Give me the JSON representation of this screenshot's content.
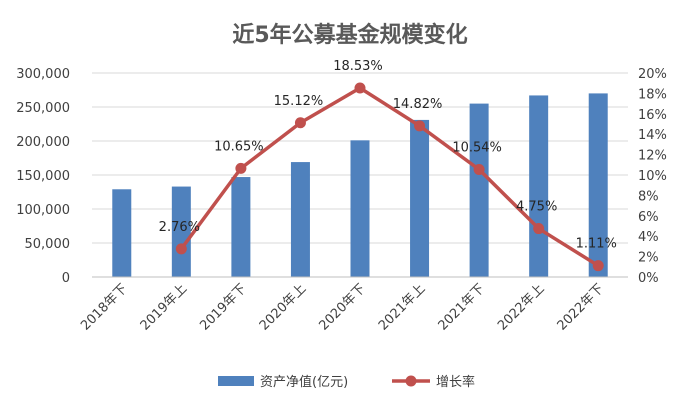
{
  "chart_data": {
    "type": "bar",
    "title": "近5年公募基金规模变化",
    "categories": [
      "2018年下",
      "2019年上",
      "2019年下",
      "2020年上",
      "2020年下",
      "2021年上",
      "2021年下",
      "2022年上",
      "2022年下"
    ],
    "series": [
      {
        "name": "资产净值(亿元)",
        "type": "bar",
        "axis": "left",
        "color": "#4F81BD",
        "values": [
          129000,
          133000,
          147000,
          169000,
          201000,
          231000,
          255000,
          267000,
          270000
        ]
      },
      {
        "name": "增长率",
        "type": "line",
        "axis": "right",
        "color": "#C0504D",
        "values": [
          null,
          2.76,
          10.65,
          15.12,
          18.53,
          14.82,
          10.54,
          4.75,
          1.11
        ],
        "labels": [
          "",
          "2.76%",
          "10.65%",
          "15.12%",
          "18.53%",
          "14.82%",
          "10.54%",
          "4.75%",
          "1.11%"
        ]
      }
    ],
    "y_left": {
      "range": [
        0,
        300000
      ],
      "tick_labels": [
        "0",
        "50,000",
        "100,000",
        "150,000",
        "200,000",
        "250,000",
        "300,000"
      ]
    },
    "y_right": {
      "range": [
        0,
        20
      ],
      "tick_labels": [
        "0%",
        "2%",
        "4%",
        "6%",
        "8%",
        "10%",
        "12%",
        "14%",
        "16%",
        "18%",
        "20%"
      ]
    },
    "grid": true,
    "legend_position": "bottom"
  }
}
